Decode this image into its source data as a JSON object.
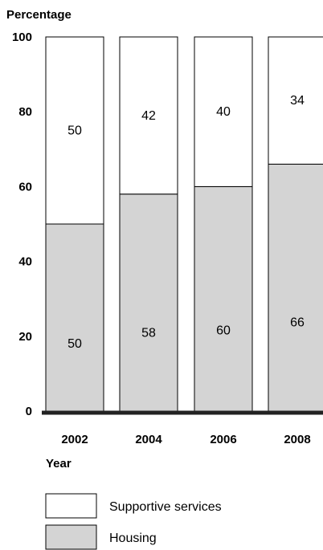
{
  "chart_data": {
    "type": "bar",
    "stacked": true,
    "ylabel": "Percentage",
    "xlabel": "Year",
    "ylim": [
      0,
      100
    ],
    "yticks": [
      0,
      20,
      40,
      60,
      80,
      100
    ],
    "categories": [
      "2002",
      "2004",
      "2006",
      "2008"
    ],
    "series": [
      {
        "name": "Housing",
        "values": [
          50,
          58,
          60,
          66
        ],
        "color": "#d4d4d4"
      },
      {
        "name": "Supportive services",
        "values": [
          50,
          42,
          40,
          34
        ],
        "color": "#ffffff"
      }
    ],
    "legend_placement": "bottom-left",
    "grid": false
  }
}
